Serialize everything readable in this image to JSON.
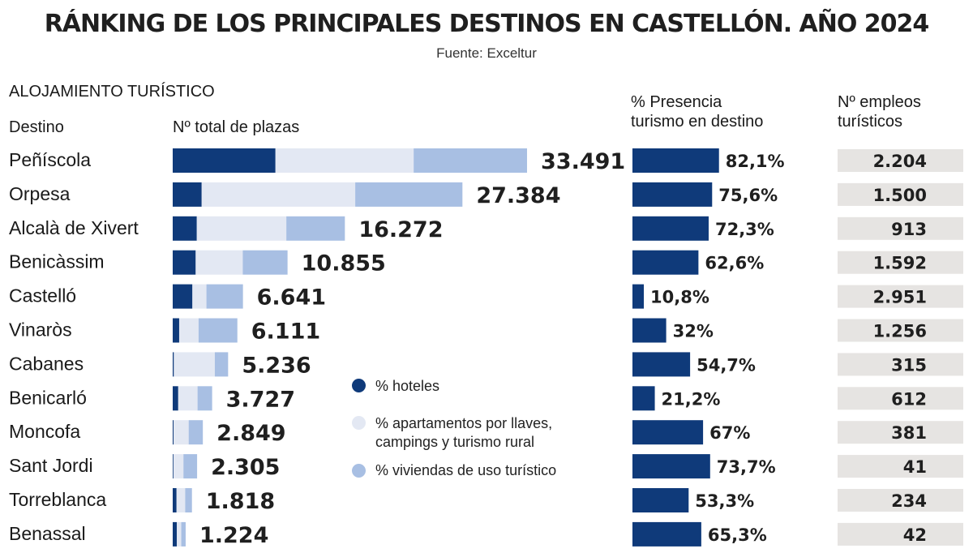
{
  "title": "RÁNKING DE LOS PRINCIPALES DESTINOS EN CASTELLÓN. AÑO 2024",
  "source": "Fuente: Exceltur",
  "section": "ALOJAMIENTO TURÍSTICO",
  "headers": {
    "destino": "Destino",
    "plazas": "Nº total de plazas",
    "presencia_line1": "% Presencia",
    "presencia_line2": "turismo en destino",
    "empleos_line1": "Nº empleos",
    "empleos_line2": "turísticos"
  },
  "legend": {
    "hoteles": "% hoteles",
    "apartamentos_line1": "% apartamentos por llaves,",
    "apartamentos_line2": "campings y turismo rural",
    "viviendas": "% viviendas de uso turístico"
  },
  "colors": {
    "hoteles": "#0f3a7a",
    "apartamentos": "#e3e8f3",
    "viviendas": "#a8bfe3",
    "presencia": "#0f3a7a",
    "empleos_bg": "#e6e4e2"
  },
  "chart_data": {
    "type": "bar",
    "title": "RÁNKING DE LOS PRINCIPALES DESTINOS EN CASTELLÓN. AÑO 2024",
    "categories": [
      "Peñíscola",
      "Orpesa",
      "Alcalà de Xivert",
      "Benicàssim",
      "Castelló",
      "Vinaròs",
      "Cabanes",
      "Benicarló",
      "Moncofa",
      "Sant Jordi",
      "Torreblanca",
      "Benassal"
    ],
    "total_plazas": [
      33491,
      27384,
      16272,
      10855,
      6641,
      6111,
      5236,
      3727,
      2849,
      2305,
      1818,
      1224
    ],
    "total_plazas_labels": [
      "33.491",
      "27.384",
      "16.272",
      "10.855",
      "6.641",
      "6.111",
      "5.236",
      "3.727",
      "2.849",
      "2.305",
      "1.818",
      "1.224"
    ],
    "series": [
      {
        "name": "% hoteles",
        "values": [
          29,
          10,
          14,
          20,
          28,
          10,
          2,
          14,
          3,
          3,
          20,
          32
        ]
      },
      {
        "name": "% apartamentos por llaves, campings y turismo rural",
        "values": [
          39,
          53,
          52,
          41,
          20,
          30,
          74,
          49,
          50,
          41,
          45,
          34
        ]
      },
      {
        "name": "% viviendas de uso turístico",
        "values": [
          32,
          37,
          34,
          39,
          52,
          60,
          24,
          37,
          47,
          56,
          35,
          34
        ]
      }
    ],
    "presencia": [
      82.1,
      75.6,
      72.3,
      62.6,
      10.8,
      32,
      54.7,
      21.2,
      67,
      73.7,
      53.3,
      65.3
    ],
    "presencia_labels": [
      "82,1%",
      "75,6%",
      "72,3%",
      "62,6%",
      "10,8%",
      "32%",
      "54,7%",
      "21,2%",
      "67%",
      "73,7%",
      "53,3%",
      "65,3%"
    ],
    "empleos": [
      2204,
      1500,
      913,
      1592,
      2951,
      1256,
      315,
      612,
      381,
      41,
      234,
      42
    ],
    "empleos_labels": [
      "2.204",
      "1.500",
      "913",
      "1.592",
      "2.951",
      "1.256",
      "315",
      "612",
      "381",
      "41",
      "234",
      "42"
    ],
    "xlabel": "Nº total de plazas",
    "ylabel": "Destino"
  }
}
